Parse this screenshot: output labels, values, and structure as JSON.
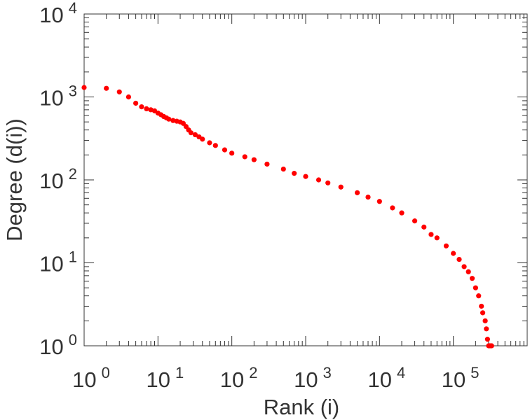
{
  "chart_data": {
    "type": "scatter",
    "title": "",
    "xlabel": "Rank (i)",
    "ylabel": "Degree (d(i))",
    "xscale": "log",
    "yscale": "log",
    "xlim": [
      1,
      1000000
    ],
    "ylim": [
      1,
      10000
    ],
    "grid": false,
    "marker_color": "#ff0000",
    "x_tick_labels": [
      {
        "base": "10",
        "exp": "0"
      },
      {
        "base": "10",
        "exp": "1"
      },
      {
        "base": "10",
        "exp": "2"
      },
      {
        "base": "10",
        "exp": "3"
      },
      {
        "base": "10",
        "exp": "4"
      },
      {
        "base": "10",
        "exp": "5"
      }
    ],
    "y_tick_labels": [
      {
        "base": "10",
        "exp": "0"
      },
      {
        "base": "10",
        "exp": "1"
      },
      {
        "base": "10",
        "exp": "2"
      },
      {
        "base": "10",
        "exp": "3"
      },
      {
        "base": "10",
        "exp": "4"
      }
    ],
    "series": [
      {
        "points": [
          [
            1,
            1300
          ],
          [
            2,
            1270
          ],
          [
            3,
            1150
          ],
          [
            4,
            1000
          ],
          [
            5,
            840
          ],
          [
            6,
            760
          ],
          [
            7,
            720
          ],
          [
            8,
            700
          ],
          [
            9,
            680
          ],
          [
            10,
            640
          ],
          [
            11,
            610
          ],
          [
            12,
            580
          ],
          [
            13,
            560
          ],
          [
            14,
            540
          ],
          [
            16,
            520
          ],
          [
            18,
            510
          ],
          [
            20,
            500
          ],
          [
            22,
            480
          ],
          [
            24,
            440
          ],
          [
            26,
            400
          ],
          [
            28,
            370
          ],
          [
            32,
            350
          ],
          [
            36,
            330
          ],
          [
            40,
            310
          ],
          [
            50,
            280
          ],
          [
            60,
            260
          ],
          [
            80,
            230
          ],
          [
            100,
            210
          ],
          [
            150,
            190
          ],
          [
            200,
            175
          ],
          [
            300,
            155
          ],
          [
            500,
            135
          ],
          [
            700,
            120
          ],
          [
            1000,
            110
          ],
          [
            1500,
            100
          ],
          [
            2000,
            92
          ],
          [
            3000,
            82
          ],
          [
            5000,
            70
          ],
          [
            7000,
            62
          ],
          [
            10000,
            55
          ],
          [
            15000,
            46
          ],
          [
            20000,
            40
          ],
          [
            30000,
            32
          ],
          [
            40000,
            27
          ],
          [
            50000,
            22
          ],
          [
            60000,
            20
          ],
          [
            80000,
            16
          ],
          [
            100000,
            13
          ],
          [
            120000,
            11
          ],
          [
            140000,
            9
          ],
          [
            160000,
            7.8
          ],
          [
            180000,
            6.5
          ],
          [
            200000,
            5
          ],
          [
            220000,
            4
          ],
          [
            240000,
            3
          ],
          [
            250000,
            2.5
          ],
          [
            270000,
            2
          ],
          [
            280000,
            1.6
          ],
          [
            290000,
            1.2
          ],
          [
            300000,
            1
          ],
          [
            310000,
            1
          ],
          [
            320000,
            1
          ],
          [
            330000,
            1
          ]
        ]
      }
    ]
  }
}
